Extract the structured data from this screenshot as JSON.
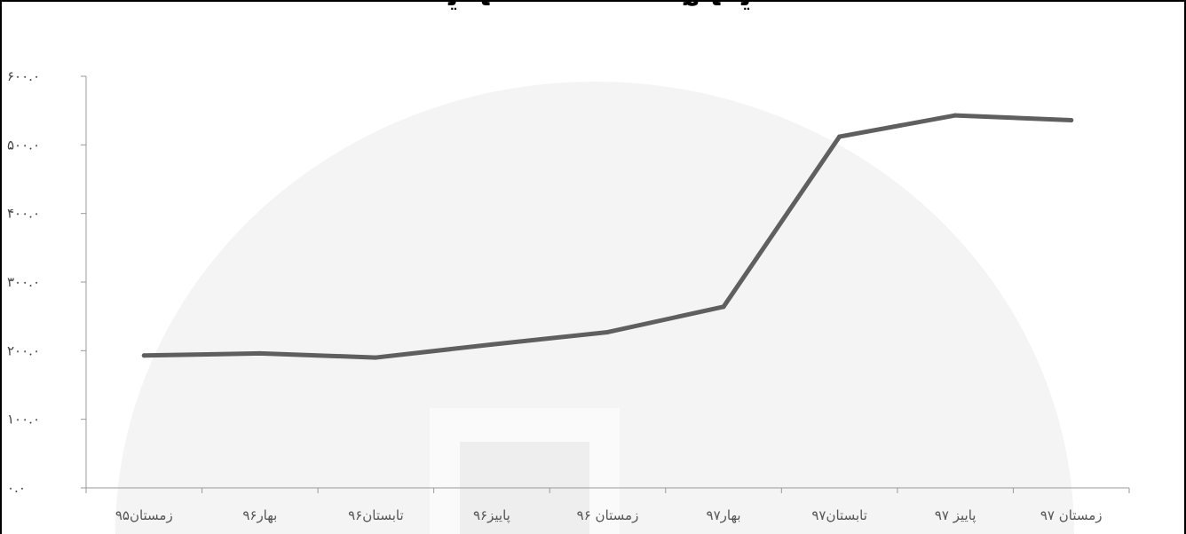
{
  "chart_data": {
    "type": "line",
    "categories": [
      "زمستان۹۵",
      "بهار۹۶",
      "تابستان۹۶",
      "پاییز۹۶",
      "زمستان ۹۶",
      "بهار۹۷",
      "تابستان۹۷",
      "پاییز ۹۷",
      "زمستان ۹۷"
    ],
    "series": [
      {
        "values": [
          193,
          196,
          190,
          209,
          227,
          264,
          512,
          543,
          536
        ]
      }
    ],
    "ylim": [
      0,
      600
    ],
    "yticks": [
      0,
      100,
      200,
      300,
      400,
      500,
      600
    ],
    "ytick_labels": [
      "۰.۰",
      "۱۰۰.۰",
      "۲۰۰.۰",
      "۳۰۰.۰",
      "۴۰۰.۰",
      "۵۰۰.۰",
      "۶۰۰.۰"
    ],
    "grid": false,
    "colors": {
      "line": "#5f5f5f",
      "axis": "#9a9a9a"
    }
  }
}
